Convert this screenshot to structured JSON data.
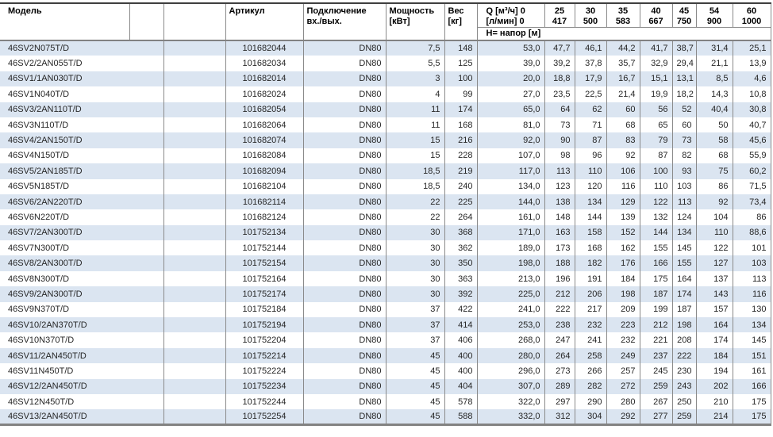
{
  "table": {
    "header": {
      "model": "Модель",
      "articul": "Артикул",
      "connection": [
        "Подключение",
        "вх./вых."
      ],
      "power": [
        "Мощность",
        "[кВт]"
      ],
      "weight": [
        "Вес",
        "[кг]"
      ],
      "q": [
        "Q [м³/ч] 0",
        "[л/мин] 0"
      ],
      "subheader": "H= напор [м]"
    },
    "flow_columns": [
      [
        "25",
        "417"
      ],
      [
        "30",
        "500"
      ],
      [
        "35",
        "583"
      ],
      [
        "40",
        "667"
      ],
      [
        "45",
        "750"
      ],
      [
        "54",
        "900"
      ],
      [
        "60",
        "1000"
      ]
    ],
    "rows": [
      {
        "model": "46SV2N075T/D",
        "articul": "101682044",
        "connection": "DN80",
        "power": "7,5",
        "weight": "148",
        "h": [
          "53,0",
          "47,7",
          "46,1",
          "44,2",
          "41,7",
          "38,7",
          "31,4",
          "25,1"
        ]
      },
      {
        "model": "46SV2/2AN055T/D",
        "articul": "101682034",
        "connection": "DN80",
        "power": "5,5",
        "weight": "125",
        "h": [
          "39,0",
          "39,2",
          "37,8",
          "35,7",
          "32,9",
          "29,4",
          "21,1",
          "13,9"
        ]
      },
      {
        "model": "46SV1/1AN030T/D",
        "articul": "101682014",
        "connection": "DN80",
        "power": "3",
        "weight": "100",
        "h": [
          "20,0",
          "18,8",
          "17,9",
          "16,7",
          "15,1",
          "13,1",
          "8,5",
          "4,6"
        ]
      },
      {
        "model": "46SV1N040T/D",
        "articul": "101682024",
        "connection": "DN80",
        "power": "4",
        "weight": "99",
        "h": [
          "27,0",
          "23,5",
          "22,5",
          "21,4",
          "19,9",
          "18,2",
          "14,3",
          "10,8"
        ]
      },
      {
        "model": "46SV3/2AN110T/D",
        "articul": "101682054",
        "connection": "DN80",
        "power": "11",
        "weight": "174",
        "h": [
          "65,0",
          "64",
          "62",
          "60",
          "56",
          "52",
          "40,4",
          "30,8"
        ]
      },
      {
        "model": "46SV3N110T/D",
        "articul": "101682064",
        "connection": "DN80",
        "power": "11",
        "weight": "168",
        "h": [
          "81,0",
          "73",
          "71",
          "68",
          "65",
          "60",
          "50",
          "40,7"
        ]
      },
      {
        "model": "46SV4/2AN150T/D",
        "articul": "101682074",
        "connection": "DN80",
        "power": "15",
        "weight": "216",
        "h": [
          "92,0",
          "90",
          "87",
          "83",
          "79",
          "73",
          "58",
          "45,6"
        ]
      },
      {
        "model": "46SV4N150T/D",
        "articul": "101682084",
        "connection": "DN80",
        "power": "15",
        "weight": "228",
        "h": [
          "107,0",
          "98",
          "96",
          "92",
          "87",
          "82",
          "68",
          "55,9"
        ]
      },
      {
        "model": "46SV5/2AN185T/D",
        "articul": "101682094",
        "connection": "DN80",
        "power": "18,5",
        "weight": "219",
        "h": [
          "117,0",
          "113",
          "110",
          "106",
          "100",
          "93",
          "75",
          "60,2"
        ]
      },
      {
        "model": "46SV5N185T/D",
        "articul": "101682104",
        "connection": "DN80",
        "power": "18,5",
        "weight": "240",
        "h": [
          "134,0",
          "123",
          "120",
          "116",
          "110",
          "103",
          "86",
          "71,5"
        ]
      },
      {
        "model": "46SV6/2AN220T/D",
        "articul": "101682114",
        "connection": "DN80",
        "power": "22",
        "weight": "225",
        "h": [
          "144,0",
          "138",
          "134",
          "129",
          "122",
          "113",
          "92",
          "73,4"
        ]
      },
      {
        "model": "46SV6N220T/D",
        "articul": "101682124",
        "connection": "DN80",
        "power": "22",
        "weight": "264",
        "h": [
          "161,0",
          "148",
          "144",
          "139",
          "132",
          "124",
          "104",
          "86"
        ]
      },
      {
        "model": "46SV7/2AN300T/D",
        "articul": "101752134",
        "connection": "DN80",
        "power": "30",
        "weight": "368",
        "h": [
          "171,0",
          "163",
          "158",
          "152",
          "144",
          "134",
          "110",
          "88,6"
        ]
      },
      {
        "model": "46SV7N300T/D",
        "articul": "101752144",
        "connection": "DN80",
        "power": "30",
        "weight": "362",
        "h": [
          "189,0",
          "173",
          "168",
          "162",
          "155",
          "145",
          "122",
          "101"
        ]
      },
      {
        "model": "46SV8/2AN300T/D",
        "articul": "101752154",
        "connection": "DN80",
        "power": "30",
        "weight": "350",
        "h": [
          "198,0",
          "188",
          "182",
          "176",
          "166",
          "155",
          "127",
          "103"
        ]
      },
      {
        "model": "46SV8N300T/D",
        "articul": "101752164",
        "connection": "DN80",
        "power": "30",
        "weight": "363",
        "h": [
          "213,0",
          "196",
          "191",
          "184",
          "175",
          "164",
          "137",
          "113"
        ]
      },
      {
        "model": "46SV9/2AN300T/D",
        "articul": "101752174",
        "connection": "DN80",
        "power": "30",
        "weight": "392",
        "h": [
          "225,0",
          "212",
          "206",
          "198",
          "187",
          "174",
          "143",
          "116"
        ]
      },
      {
        "model": "46SV9N370T/D",
        "articul": "101752184",
        "connection": "DN80",
        "power": "37",
        "weight": "422",
        "h": [
          "241,0",
          "222",
          "217",
          "209",
          "199",
          "187",
          "157",
          "130"
        ]
      },
      {
        "model": "46SV10/2AN370T/D",
        "articul": "101752194",
        "connection": "DN80",
        "power": "37",
        "weight": "414",
        "h": [
          "253,0",
          "238",
          "232",
          "223",
          "212",
          "198",
          "164",
          "134"
        ]
      },
      {
        "model": "46SV10N370T/D",
        "articul": "101752204",
        "connection": "DN80",
        "power": "37",
        "weight": "406",
        "h": [
          "268,0",
          "247",
          "241",
          "232",
          "221",
          "208",
          "174",
          "145"
        ]
      },
      {
        "model": "46SV11/2AN450T/D",
        "articul": "101752214",
        "connection": "DN80",
        "power": "45",
        "weight": "400",
        "h": [
          "280,0",
          "264",
          "258",
          "249",
          "237",
          "222",
          "184",
          "151"
        ]
      },
      {
        "model": "46SV11N450T/D",
        "articul": "101752224",
        "connection": "DN80",
        "power": "45",
        "weight": "400",
        "h": [
          "296,0",
          "273",
          "266",
          "257",
          "245",
          "230",
          "194",
          "161"
        ]
      },
      {
        "model": "46SV12/2AN450T/D",
        "articul": "101752234",
        "connection": "DN80",
        "power": "45",
        "weight": "404",
        "h": [
          "307,0",
          "289",
          "282",
          "272",
          "259",
          "243",
          "202",
          "166"
        ]
      },
      {
        "model": "46SV12N450T/D",
        "articul": "101752244",
        "connection": "DN80",
        "power": "45",
        "weight": "578",
        "h": [
          "322,0",
          "297",
          "290",
          "280",
          "267",
          "250",
          "210",
          "175"
        ]
      },
      {
        "model": "46SV13/2AN450T/D",
        "articul": "101752254",
        "connection": "DN80",
        "power": "45",
        "weight": "588",
        "h": [
          "332,0",
          "312",
          "304",
          "292",
          "277",
          "259",
          "214",
          "175"
        ]
      }
    ]
  },
  "colors": {
    "row_alt": "#dbe5f1",
    "row_base": "#ffffff",
    "grid_border": "#8a8a8a",
    "top_border": "#3f3f3f",
    "thick_border": "#828282",
    "text": "#262626"
  }
}
